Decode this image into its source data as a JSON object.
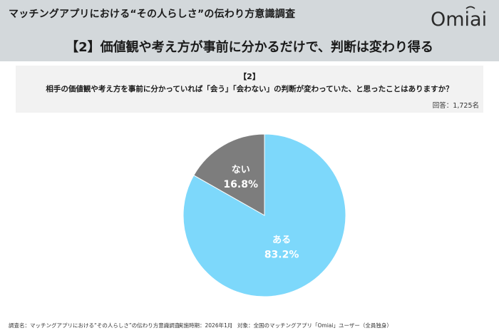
{
  "header": {
    "title": "マッチングアプリにおける“その人らしさ”の伝わり方意識調査",
    "subtitle": "【2】価値観や考え方が事前に分かるだけで、判断は変わり得る",
    "logo_text": "Omiai"
  },
  "question": {
    "number": "【2】",
    "text": "相手の価値観や考え方を事前に分かっていれば「会う」「会わない」の判断が変わっていた、と思ったことはありますか？",
    "respondents": "回答：1,725名"
  },
  "chart_data": {
    "type": "pie",
    "slices": [
      {
        "label": "ある",
        "value": 83.2,
        "value_label": "83.2%",
        "color": "#7dd8fb"
      },
      {
        "label": "ない",
        "value": 16.8,
        "value_label": "16.8%",
        "color": "#7d7d7d"
      }
    ]
  },
  "footer": {
    "survey": "調査名：マッチングアプリにおける“その人らしさ”の伝わり方意識調査",
    "period": "実施時期：2026年1月",
    "target": "対象：全国のマッチングアプリ「Omiai」ユーザー（全員独身）"
  }
}
